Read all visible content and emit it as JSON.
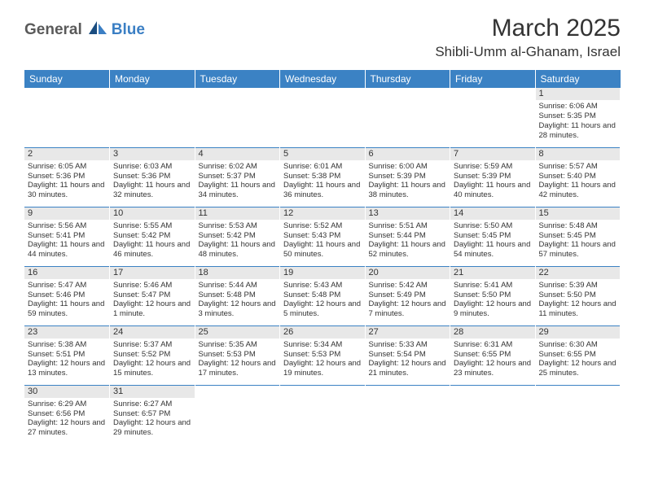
{
  "logo": {
    "text1": "General",
    "text2": "Blue"
  },
  "title": "March 2025",
  "location": "Shibli-Umm al-Ghanam, Israel",
  "colors": {
    "header_bg": "#3b82c4",
    "header_text": "#ffffff",
    "daynum_bg": "#e8e8e8",
    "border": "#3b82c4",
    "logo_gray": "#5a5a5a",
    "logo_blue": "#3b7fc4"
  },
  "daysOfWeek": [
    "Sunday",
    "Monday",
    "Tuesday",
    "Wednesday",
    "Thursday",
    "Friday",
    "Saturday"
  ],
  "weeks": [
    [
      {
        "num": null
      },
      {
        "num": null
      },
      {
        "num": null
      },
      {
        "num": null
      },
      {
        "num": null
      },
      {
        "num": null
      },
      {
        "num": "1",
        "sunrise": "6:06 AM",
        "sunset": "5:35 PM",
        "daylight": "11 hours and 28 minutes."
      }
    ],
    [
      {
        "num": "2",
        "sunrise": "6:05 AM",
        "sunset": "5:36 PM",
        "daylight": "11 hours and 30 minutes."
      },
      {
        "num": "3",
        "sunrise": "6:03 AM",
        "sunset": "5:36 PM",
        "daylight": "11 hours and 32 minutes."
      },
      {
        "num": "4",
        "sunrise": "6:02 AM",
        "sunset": "5:37 PM",
        "daylight": "11 hours and 34 minutes."
      },
      {
        "num": "5",
        "sunrise": "6:01 AM",
        "sunset": "5:38 PM",
        "daylight": "11 hours and 36 minutes."
      },
      {
        "num": "6",
        "sunrise": "6:00 AM",
        "sunset": "5:39 PM",
        "daylight": "11 hours and 38 minutes."
      },
      {
        "num": "7",
        "sunrise": "5:59 AM",
        "sunset": "5:39 PM",
        "daylight": "11 hours and 40 minutes."
      },
      {
        "num": "8",
        "sunrise": "5:57 AM",
        "sunset": "5:40 PM",
        "daylight": "11 hours and 42 minutes."
      }
    ],
    [
      {
        "num": "9",
        "sunrise": "5:56 AM",
        "sunset": "5:41 PM",
        "daylight": "11 hours and 44 minutes."
      },
      {
        "num": "10",
        "sunrise": "5:55 AM",
        "sunset": "5:42 PM",
        "daylight": "11 hours and 46 minutes."
      },
      {
        "num": "11",
        "sunrise": "5:53 AM",
        "sunset": "5:42 PM",
        "daylight": "11 hours and 48 minutes."
      },
      {
        "num": "12",
        "sunrise": "5:52 AM",
        "sunset": "5:43 PM",
        "daylight": "11 hours and 50 minutes."
      },
      {
        "num": "13",
        "sunrise": "5:51 AM",
        "sunset": "5:44 PM",
        "daylight": "11 hours and 52 minutes."
      },
      {
        "num": "14",
        "sunrise": "5:50 AM",
        "sunset": "5:45 PM",
        "daylight": "11 hours and 54 minutes."
      },
      {
        "num": "15",
        "sunrise": "5:48 AM",
        "sunset": "5:45 PM",
        "daylight": "11 hours and 57 minutes."
      }
    ],
    [
      {
        "num": "16",
        "sunrise": "5:47 AM",
        "sunset": "5:46 PM",
        "daylight": "11 hours and 59 minutes."
      },
      {
        "num": "17",
        "sunrise": "5:46 AM",
        "sunset": "5:47 PM",
        "daylight": "12 hours and 1 minute."
      },
      {
        "num": "18",
        "sunrise": "5:44 AM",
        "sunset": "5:48 PM",
        "daylight": "12 hours and 3 minutes."
      },
      {
        "num": "19",
        "sunrise": "5:43 AM",
        "sunset": "5:48 PM",
        "daylight": "12 hours and 5 minutes."
      },
      {
        "num": "20",
        "sunrise": "5:42 AM",
        "sunset": "5:49 PM",
        "daylight": "12 hours and 7 minutes."
      },
      {
        "num": "21",
        "sunrise": "5:41 AM",
        "sunset": "5:50 PM",
        "daylight": "12 hours and 9 minutes."
      },
      {
        "num": "22",
        "sunrise": "5:39 AM",
        "sunset": "5:50 PM",
        "daylight": "12 hours and 11 minutes."
      }
    ],
    [
      {
        "num": "23",
        "sunrise": "5:38 AM",
        "sunset": "5:51 PM",
        "daylight": "12 hours and 13 minutes."
      },
      {
        "num": "24",
        "sunrise": "5:37 AM",
        "sunset": "5:52 PM",
        "daylight": "12 hours and 15 minutes."
      },
      {
        "num": "25",
        "sunrise": "5:35 AM",
        "sunset": "5:53 PM",
        "daylight": "12 hours and 17 minutes."
      },
      {
        "num": "26",
        "sunrise": "5:34 AM",
        "sunset": "5:53 PM",
        "daylight": "12 hours and 19 minutes."
      },
      {
        "num": "27",
        "sunrise": "5:33 AM",
        "sunset": "5:54 PM",
        "daylight": "12 hours and 21 minutes."
      },
      {
        "num": "28",
        "sunrise": "6:31 AM",
        "sunset": "6:55 PM",
        "daylight": "12 hours and 23 minutes."
      },
      {
        "num": "29",
        "sunrise": "6:30 AM",
        "sunset": "6:55 PM",
        "daylight": "12 hours and 25 minutes."
      }
    ],
    [
      {
        "num": "30",
        "sunrise": "6:29 AM",
        "sunset": "6:56 PM",
        "daylight": "12 hours and 27 minutes."
      },
      {
        "num": "31",
        "sunrise": "6:27 AM",
        "sunset": "6:57 PM",
        "daylight": "12 hours and 29 minutes."
      },
      {
        "num": null
      },
      {
        "num": null
      },
      {
        "num": null
      },
      {
        "num": null
      },
      {
        "num": null
      }
    ]
  ],
  "labels": {
    "sunrise": "Sunrise:",
    "sunset": "Sunset:",
    "daylight": "Daylight:"
  }
}
